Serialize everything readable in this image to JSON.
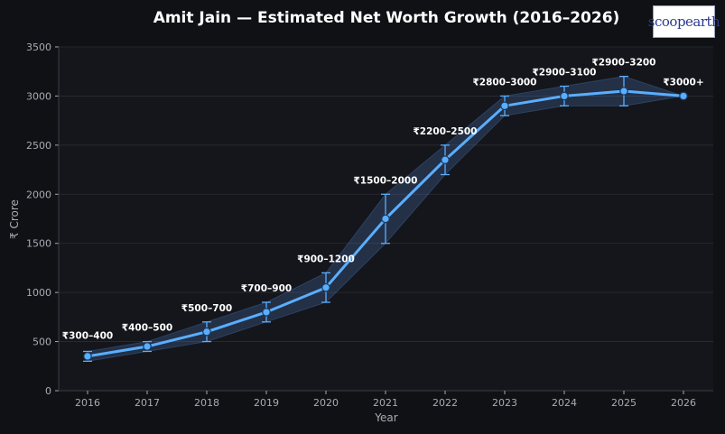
{
  "colors": {
    "background": "#0f1115",
    "plot_background": "#14161b",
    "line": "#5aaeff",
    "band": "#4a78b8",
    "text": "#ffffff",
    "axis_text": "#a8abb2",
    "grid": "#2b2e35"
  },
  "logo": {
    "text": "scoopearth"
  },
  "chart_data": {
    "type": "line",
    "title": "Amit Jain — Estimated Net Worth Growth (2016–2026)",
    "xlabel": "Year",
    "ylabel": "₹ Crore",
    "ylim": [
      0,
      3500
    ],
    "yticks": [
      0,
      500,
      1000,
      1500,
      2000,
      2500,
      3000,
      3500
    ],
    "grid": true,
    "x": [
      "2016",
      "2017",
      "2018",
      "2019",
      "2020",
      "2021",
      "2022",
      "2023",
      "2024",
      "2025",
      "2026"
    ],
    "series": [
      {
        "values": [
          350,
          450,
          600,
          800,
          1050,
          1750,
          2350,
          2900,
          3000,
          3050,
          3000
        ],
        "lower": [
          300,
          400,
          500,
          700,
          900,
          1500,
          2200,
          2800,
          2900,
          2900,
          3000
        ],
        "upper": [
          400,
          500,
          700,
          900,
          1200,
          2000,
          2500,
          3000,
          3100,
          3200,
          3000
        ]
      }
    ],
    "annotations": [
      "₹300–400",
      "₹400–500",
      "₹500–700",
      "₹700–900",
      "₹900–1200",
      "₹1500–2000",
      "₹2200–2500",
      "₹2800–3000",
      "₹2900–3100",
      "₹2900–3200",
      "₹3000+"
    ]
  }
}
